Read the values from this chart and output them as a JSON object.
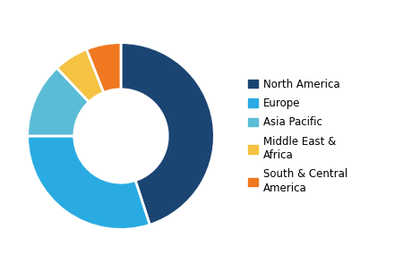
{
  "labels": [
    "North America",
    "Europe",
    "Asia Pacific",
    "Middle East & Africa",
    "South & Central America"
  ],
  "legend_labels": [
    "North America",
    "Europe",
    "Asia Pacific",
    "Middle East &\nAfrica",
    "South & Central\nAmerica"
  ],
  "values": [
    45,
    30,
    13,
    6,
    6
  ],
  "colors": [
    "#1a4472",
    "#29abe2",
    "#5bbcd6",
    "#f5c242",
    "#f07820"
  ],
  "startangle": 90,
  "background_color": "#ffffff",
  "legend_fontsize": 8.5,
  "figsize": [
    4.5,
    3.04
  ],
  "dpi": 100
}
